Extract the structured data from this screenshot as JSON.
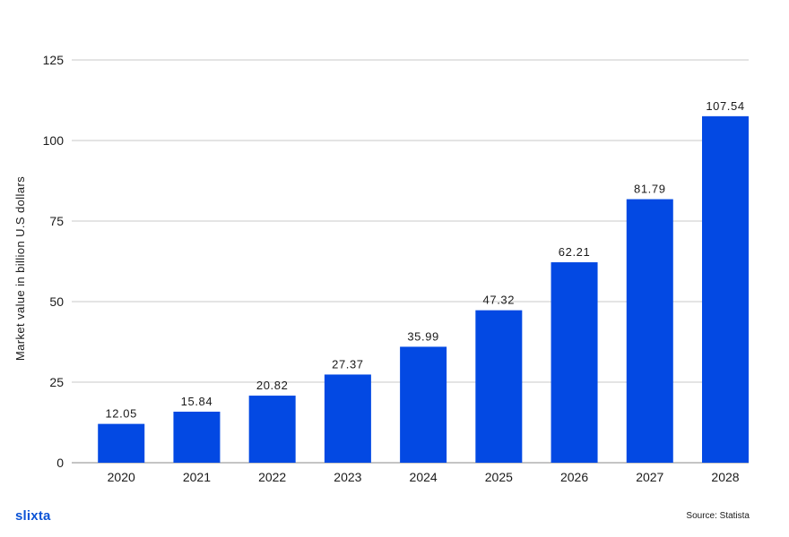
{
  "chart_data": {
    "type": "bar",
    "categories": [
      "2020",
      "2021",
      "2022",
      "2023",
      "2024",
      "2025",
      "2026",
      "2027",
      "2028"
    ],
    "values": [
      12.05,
      15.84,
      20.82,
      27.37,
      35.99,
      47.32,
      62.21,
      81.79,
      107.54
    ],
    "value_labels": [
      "12.05",
      "15.84",
      "20.82",
      "27.37",
      "35.99",
      "47.32",
      "62.21",
      "81.79",
      "107.54"
    ],
    "title": "",
    "xlabel": "",
    "ylabel": "Market value in billion U.S dollars",
    "ylim": [
      0,
      125
    ],
    "yticks": [
      0,
      25,
      50,
      75,
      100,
      125
    ],
    "grid": true,
    "bar_color": "#0349e3",
    "grid_color": "#c8c8c8"
  },
  "footer": {
    "logo": "slixta",
    "source": "Source: Statista"
  }
}
